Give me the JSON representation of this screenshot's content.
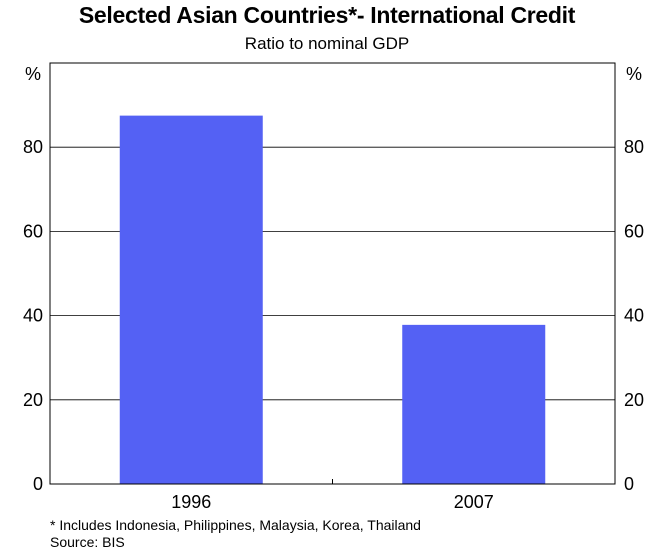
{
  "chart_data": {
    "type": "bar",
    "title": "Selected Asian Countries*- International Credit",
    "subtitle": "Ratio to nominal GDP",
    "categories": [
      "1996",
      "2007"
    ],
    "values": [
      87.5,
      37.8
    ],
    "ylim": [
      0,
      100
    ],
    "yticks": [
      0,
      20,
      40,
      60,
      80
    ],
    "y_unit_left": "%",
    "y_unit_right": "%",
    "grid": true,
    "bar_color": "#5461f4",
    "footnotes": [
      "*   Includes Indonesia, Philippines, Malaysia, Korea, Thailand",
      "Source: BIS"
    ]
  }
}
